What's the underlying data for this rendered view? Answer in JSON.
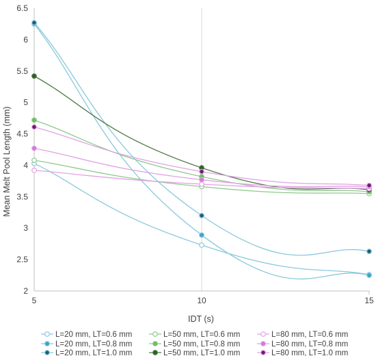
{
  "chart_data": {
    "type": "scatter",
    "xlabel": "IDT (s)",
    "ylabel": "Mean Melt Pool Length (mm)",
    "xlim": [
      5,
      15
    ],
    "ylim": [
      2,
      6.5
    ],
    "xticks": [
      5,
      10,
      15
    ],
    "yticks": [
      2,
      2.5,
      3,
      3.5,
      4,
      4.5,
      5,
      5.5,
      6,
      6.5
    ],
    "grid": "vertical only",
    "legend_position": "bottom",
    "x": [
      5,
      10,
      15
    ],
    "series": [
      {
        "name": "L=20 mm, LT=0.6 mm",
        "values": [
          4.03,
          2.73,
          2.26
        ],
        "color": "#8ac8dc",
        "fill": "#ffffff"
      },
      {
        "name": "L=20 mm, LT=0.8 mm",
        "values": [
          6.25,
          2.89,
          2.25
        ],
        "color": "#8ac8dc",
        "fill": "#3ba3c8"
      },
      {
        "name": "L=20 mm, LT=1.0 mm",
        "values": [
          6.27,
          3.2,
          2.63
        ],
        "color": "#8ac8dc",
        "fill": "#1b5e78"
      },
      {
        "name": "L=50 mm, LT=0.6 mm",
        "values": [
          4.08,
          3.66,
          3.55
        ],
        "color": "#8ec98e",
        "fill": "#ffffff"
      },
      {
        "name": "L=50 mm, LT=0.8 mm",
        "values": [
          4.72,
          3.82,
          3.58
        ],
        "color": "#8ec98e",
        "fill": "#6dbf5a"
      },
      {
        "name": "L=50 mm, LT=1.0 mm",
        "values": [
          5.42,
          3.96,
          3.61
        ],
        "color": "#4e7a44",
        "fill": "#2e5e2a"
      },
      {
        "name": "L=80 mm, LT=0.6 mm",
        "values": [
          3.92,
          3.7,
          3.63
        ],
        "color": "#e2a0e4",
        "fill": "#ffffff"
      },
      {
        "name": "L=80 mm, LT=0.8 mm",
        "values": [
          4.27,
          3.77,
          3.66
        ],
        "color": "#e2a0e4",
        "fill": "#d27ad4"
      },
      {
        "name": "L=80 mm, LT=1.0 mm",
        "values": [
          4.61,
          3.9,
          3.68
        ],
        "color": "#e2a0e4",
        "fill": "#6a1f6a"
      }
    ]
  }
}
